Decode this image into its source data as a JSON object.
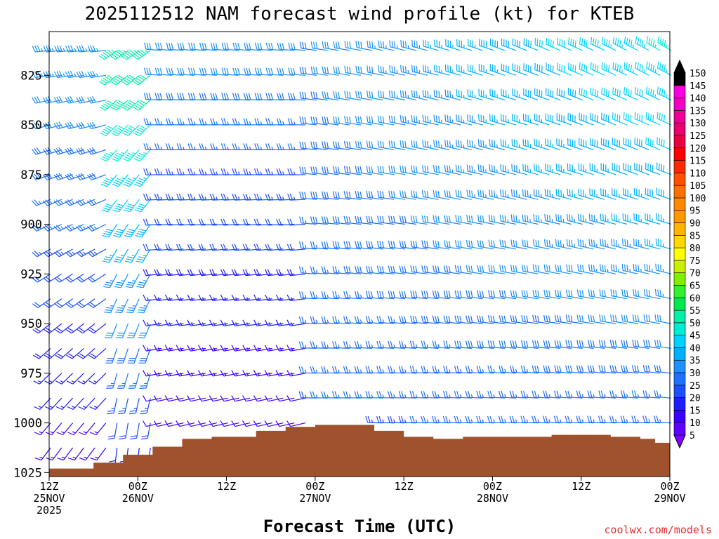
{
  "title": "2025112512 NAM forecast wind profile (kt) for KTEB",
  "footer": "coolwx.com/models",
  "chart_data": {
    "type": "wind-barb time-height profile",
    "title": "2025112512 NAM forecast wind profile (kt) for KTEB",
    "xlabel": "Forecast Time (UTC)",
    "ylabel": "",
    "units": "kt",
    "x_range_hours": [
      0,
      84
    ],
    "x_ticks": [
      {
        "h": 0,
        "lines": [
          "12Z",
          "25NOV",
          "2025"
        ]
      },
      {
        "h": 12,
        "lines": [
          "00Z",
          "26NOV"
        ]
      },
      {
        "h": 24,
        "lines": [
          "12Z"
        ]
      },
      {
        "h": 36,
        "lines": [
          "00Z",
          "27NOV"
        ]
      },
      {
        "h": 48,
        "lines": [
          "12Z"
        ]
      },
      {
        "h": 60,
        "lines": [
          "00Z",
          "28NOV"
        ]
      },
      {
        "h": 72,
        "lines": [
          "12Z"
        ]
      },
      {
        "h": 84,
        "lines": [
          "00Z",
          "29NOV"
        ]
      }
    ],
    "y_range_hpa": [
      1027,
      803
    ],
    "y_ticks": [
      825,
      850,
      875,
      900,
      925,
      950,
      975,
      1000,
      1025
    ],
    "colorbar": {
      "levels": [
        5,
        10,
        15,
        20,
        25,
        30,
        35,
        40,
        45,
        50,
        55,
        60,
        65,
        70,
        75,
        80,
        85,
        90,
        95,
        100,
        105,
        110,
        115,
        120,
        125,
        130,
        135,
        140,
        145,
        150
      ],
      "colors": [
        "#7f00ff",
        "#6000ff",
        "#3a00ff",
        "#1e1eff",
        "#1c50ff",
        "#1e72ff",
        "#1e90ff",
        "#00b0ff",
        "#00d2ff",
        "#00ecd2",
        "#00f0aa",
        "#00e850",
        "#30f030",
        "#80f000",
        "#c8f000",
        "#ffff00",
        "#ffd800",
        "#ffb400",
        "#ff9800",
        "#ff8800",
        "#ff7000",
        "#ff5000",
        "#ff2800",
        "#ff0000",
        "#e80040",
        "#e8006e",
        "#ee0096",
        "#f200c0",
        "#f800e4",
        "#000000"
      ]
    },
    "surface_pressure_hpa": [
      {
        "h": 0,
        "p": 1023
      },
      {
        "h": 6,
        "p": 1020
      },
      {
        "h": 10,
        "p": 1016
      },
      {
        "h": 14,
        "p": 1012
      },
      {
        "h": 18,
        "p": 1008
      },
      {
        "h": 22,
        "p": 1007
      },
      {
        "h": 28,
        "p": 1004
      },
      {
        "h": 32,
        "p": 1002
      },
      {
        "h": 36,
        "p": 1001
      },
      {
        "h": 40,
        "p": 1001
      },
      {
        "h": 44,
        "p": 1004
      },
      {
        "h": 48,
        "p": 1007
      },
      {
        "h": 52,
        "p": 1008
      },
      {
        "h": 56,
        "p": 1007
      },
      {
        "h": 60,
        "p": 1007
      },
      {
        "h": 64,
        "p": 1007
      },
      {
        "h": 68,
        "p": 1006
      },
      {
        "h": 72,
        "p": 1006
      },
      {
        "h": 76,
        "p": 1007
      },
      {
        "h": 80,
        "p": 1008
      },
      {
        "h": 82,
        "p": 1010
      },
      {
        "h": 84,
        "p": 1014
      }
    ],
    "wind_regimes": [
      {
        "hours": "0-9",
        "low_levels_kt": "10-20 SW",
        "upper_levels_kt": "30-40 W"
      },
      {
        "hours": "9-15",
        "low_levels_kt": "15-25 S",
        "upper_levels_kt": "45-60 SW"
      },
      {
        "hours": "15-36",
        "low_levels_kt": "5-15 W",
        "upper_levels_kt": "25-35 W"
      },
      {
        "hours": "36-84",
        "low_levels_kt": "20-30 W",
        "upper_levels_kt": "35-50 NW"
      }
    ]
  }
}
